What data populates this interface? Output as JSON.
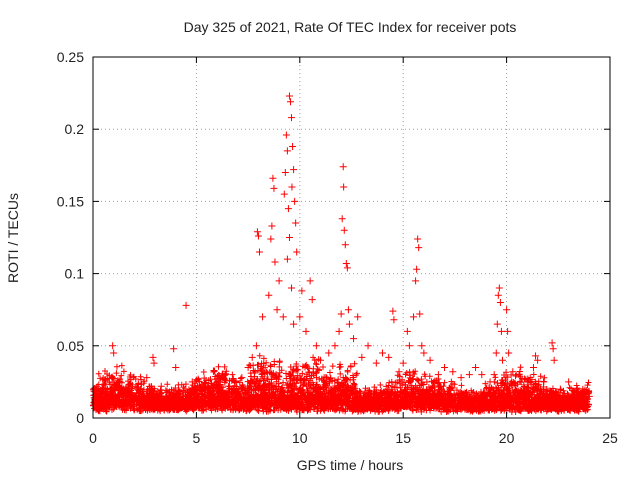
{
  "chart_data": {
    "type": "scatter",
    "title": "Day 325 of 2021, Rate Of TEC Index for receiver pots",
    "xlabel": "GPS time / hours",
    "ylabel": "ROTI / TECUs",
    "xlim": [
      0,
      25
    ],
    "ylim": [
      0,
      0.25
    ],
    "x_ticks": [
      0,
      5,
      10,
      15,
      20,
      25
    ],
    "x_tick_labels": [
      "0",
      "5",
      "10",
      "15",
      "20",
      "25"
    ],
    "y_ticks": [
      0,
      0.05,
      0.1,
      0.15,
      0.2,
      0.25
    ],
    "y_tick_labels": [
      "0",
      "0.05",
      "0.1",
      "0.15",
      "0.2",
      "0.25"
    ],
    "grid": true,
    "marker": "+",
    "color": "#ff0000",
    "series": [
      {
        "points": [
          [
            0.2,
            0.012
          ],
          [
            0.5,
            0.018
          ],
          [
            0.9,
            0.02
          ],
          [
            0.95,
            0.05
          ],
          [
            1.0,
            0.045
          ],
          [
            1.3,
            0.025
          ],
          [
            1.8,
            0.015
          ],
          [
            2.2,
            0.02
          ],
          [
            2.6,
            0.028
          ],
          [
            2.9,
            0.042
          ],
          [
            2.95,
            0.038
          ],
          [
            3.3,
            0.022
          ],
          [
            3.7,
            0.018
          ],
          [
            3.9,
            0.048
          ],
          [
            4.0,
            0.035
          ],
          [
            4.5,
            0.078
          ],
          [
            4.8,
            0.025
          ],
          [
            5.2,
            0.02
          ],
          [
            5.6,
            0.026
          ],
          [
            6.0,
            0.022
          ],
          [
            6.4,
            0.03
          ],
          [
            6.9,
            0.018
          ],
          [
            7.2,
            0.028
          ],
          [
            7.5,
            0.035
          ],
          [
            7.7,
            0.042
          ],
          [
            7.9,
            0.05
          ],
          [
            7.95,
            0.129
          ],
          [
            8.0,
            0.126
          ],
          [
            8.05,
            0.115
          ],
          [
            8.2,
            0.07
          ],
          [
            8.5,
            0.085
          ],
          [
            8.6,
            0.124
          ],
          [
            8.65,
            0.133
          ],
          [
            8.7,
            0.166
          ],
          [
            8.75,
            0.159
          ],
          [
            8.8,
            0.108
          ],
          [
            8.9,
            0.075
          ],
          [
            9.0,
            0.095
          ],
          [
            9.2,
            0.07
          ],
          [
            9.25,
            0.155
          ],
          [
            9.3,
            0.17
          ],
          [
            9.35,
            0.196
          ],
          [
            9.4,
            0.185
          ],
          [
            9.45,
            0.145
          ],
          [
            9.5,
            0.223
          ],
          [
            9.55,
            0.219
          ],
          [
            9.6,
            0.208
          ],
          [
            9.62,
            0.16
          ],
          [
            9.65,
            0.188
          ],
          [
            9.7,
            0.172
          ],
          [
            9.75,
            0.15
          ],
          [
            9.8,
            0.135
          ],
          [
            9.5,
            0.125
          ],
          [
            9.4,
            0.11
          ],
          [
            9.6,
            0.09
          ],
          [
            9.7,
            0.065
          ],
          [
            9.85,
            0.115
          ],
          [
            10.0,
            0.07
          ],
          [
            10.1,
            0.088
          ],
          [
            10.3,
            0.06
          ],
          [
            10.5,
            0.095
          ],
          [
            10.6,
            0.082
          ],
          [
            10.8,
            0.05
          ],
          [
            11.0,
            0.04
          ],
          [
            11.4,
            0.045
          ],
          [
            11.7,
            0.05
          ],
          [
            11.9,
            0.06
          ],
          [
            12.0,
            0.072
          ],
          [
            12.05,
            0.138
          ],
          [
            12.1,
            0.174
          ],
          [
            12.12,
            0.16
          ],
          [
            12.15,
            0.13
          ],
          [
            12.2,
            0.12
          ],
          [
            12.25,
            0.107
          ],
          [
            12.3,
            0.104
          ],
          [
            12.35,
            0.075
          ],
          [
            12.4,
            0.065
          ],
          [
            12.6,
            0.055
          ],
          [
            12.8,
            0.07
          ],
          [
            13.0,
            0.042
          ],
          [
            13.3,
            0.05
          ],
          [
            13.7,
            0.038
          ],
          [
            14.0,
            0.045
          ],
          [
            14.3,
            0.042
          ],
          [
            14.5,
            0.074
          ],
          [
            14.55,
            0.068
          ],
          [
            14.8,
            0.032
          ],
          [
            15.0,
            0.038
          ],
          [
            15.2,
            0.06
          ],
          [
            15.3,
            0.05
          ],
          [
            15.5,
            0.07
          ],
          [
            15.6,
            0.095
          ],
          [
            15.65,
            0.103
          ],
          [
            15.7,
            0.124
          ],
          [
            15.75,
            0.118
          ],
          [
            15.8,
            0.072
          ],
          [
            15.9,
            0.05
          ],
          [
            16.0,
            0.045
          ],
          [
            16.3,
            0.04
          ],
          [
            16.7,
            0.03
          ],
          [
            17.0,
            0.035
          ],
          [
            17.4,
            0.032
          ],
          [
            17.8,
            0.028
          ],
          [
            18.2,
            0.03
          ],
          [
            18.5,
            0.035
          ],
          [
            18.8,
            0.03
          ],
          [
            19.2,
            0.025
          ],
          [
            19.4,
            0.03
          ],
          [
            19.5,
            0.045
          ],
          [
            19.55,
            0.065
          ],
          [
            19.6,
            0.085
          ],
          [
            19.65,
            0.09
          ],
          [
            19.7,
            0.08
          ],
          [
            19.75,
            0.06
          ],
          [
            19.8,
            0.04
          ],
          [
            20.0,
            0.075
          ],
          [
            20.05,
            0.06
          ],
          [
            20.1,
            0.045
          ],
          [
            20.3,
            0.032
          ],
          [
            20.6,
            0.03
          ],
          [
            21.0,
            0.025
          ],
          [
            21.3,
            0.035
          ],
          [
            21.4,
            0.043
          ],
          [
            21.5,
            0.04
          ],
          [
            21.8,
            0.025
          ],
          [
            22.2,
            0.052
          ],
          [
            22.25,
            0.048
          ],
          [
            22.3,
            0.04
          ],
          [
            22.6,
            0.02
          ],
          [
            23.0,
            0.025
          ],
          [
            23.4,
            0.02
          ],
          [
            23.8,
            0.018
          ],
          [
            24.0,
            0.015
          ]
        ]
      }
    ]
  }
}
